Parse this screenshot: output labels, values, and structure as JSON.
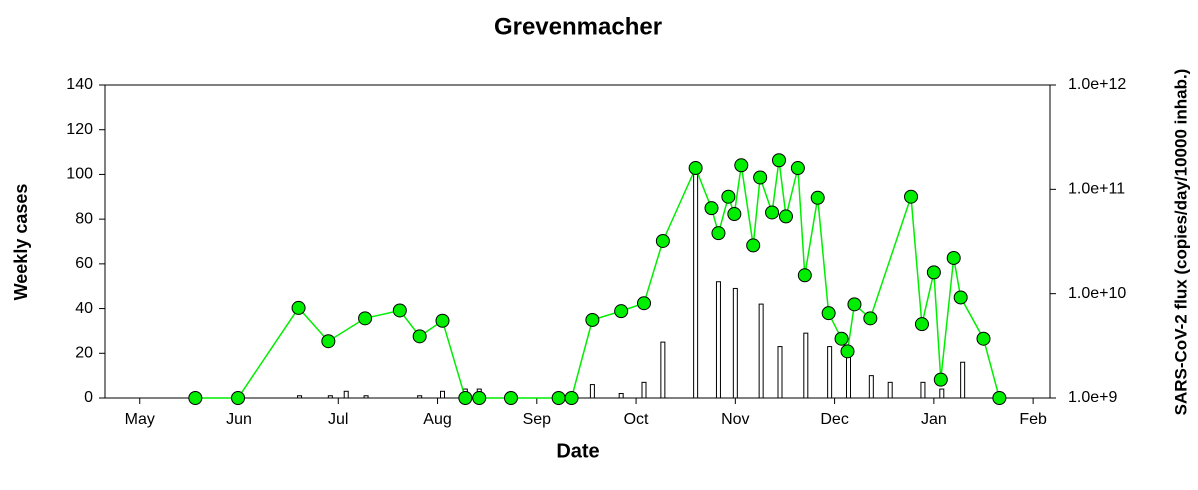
{
  "chart_data": {
    "type": "bar",
    "title": "Grevenmacher",
    "x_label": "Date",
    "y_label": "Weekly cases",
    "y2_label": "SARS-CoV-2 flux (copies/day/10000 inhab.)",
    "xlim": [
      -0.35,
      9.17
    ],
    "xticks": [
      {
        "value": 0,
        "label": "May"
      },
      {
        "value": 1,
        "label": "Jun"
      },
      {
        "value": 2,
        "label": "Jul"
      },
      {
        "value": 3,
        "label": "Aug"
      },
      {
        "value": 4,
        "label": "Sep"
      },
      {
        "value": 5,
        "label": "Oct"
      },
      {
        "value": 6,
        "label": "Nov"
      },
      {
        "value": 7,
        "label": "Dec"
      },
      {
        "value": 8,
        "label": "Jan"
      },
      {
        "value": 9,
        "label": "Feb"
      }
    ],
    "ylim": [
      0,
      140
    ],
    "yticks": [
      0,
      20,
      40,
      60,
      80,
      100,
      120,
      140
    ],
    "y2lim": [
      1000000000,
      1000000000000
    ],
    "y2scale": "log",
    "y2ticks": [
      {
        "value": 1000000000,
        "label": "1.0e+9"
      },
      {
        "value": 10000000000,
        "label": "1.0e+10"
      },
      {
        "value": 100000000000,
        "label": "1.0e+11"
      },
      {
        "value": 1000000000000,
        "label": "1.0e+12"
      }
    ],
    "series": [
      {
        "type": "bar",
        "color": "#ffffff",
        "x": [
          1.61,
          1.92,
          2.08,
          2.28,
          2.82,
          3.05,
          3.28,
          3.42,
          4.56,
          4.85,
          5.08,
          5.27,
          5.6,
          5.83,
          6.0,
          6.26,
          6.45,
          6.71,
          6.95,
          7.14,
          7.37,
          7.56,
          7.89,
          8.08,
          8.29
        ],
        "values": [
          1,
          1,
          3,
          1,
          1,
          3,
          4,
          4,
          6,
          2,
          7,
          25,
          104,
          52,
          49,
          42,
          23,
          29,
          23,
          20,
          10,
          7,
          7,
          4,
          16
        ]
      },
      {
        "type": "line",
        "axis": "y2",
        "color": "#00ee00",
        "x": [
          0.56,
          0.99,
          1.6,
          1.9,
          2.27,
          2.62,
          2.82,
          3.05,
          3.28,
          3.42,
          3.74,
          4.22,
          4.35,
          4.56,
          4.85,
          5.08,
          5.27,
          5.6,
          5.76,
          5.83,
          5.93,
          5.99,
          6.06,
          6.18,
          6.25,
          6.37,
          6.44,
          6.51,
          6.63,
          6.7,
          6.83,
          6.94,
          7.07,
          7.13,
          7.2,
          7.36,
          7.77,
          7.88,
          8.0,
          8.07,
          8.2,
          8.27,
          8.5,
          8.66
        ],
        "values": [
          1000000000,
          1000000000,
          7300000000,
          3500000000,
          5800000000,
          6900000000,
          3900000000,
          5500000000,
          1000000000,
          1000000000,
          1000000000,
          1000000000,
          1000000000,
          5600000000,
          6800000000,
          8100000000,
          32000000000,
          160000000000,
          66000000000,
          38000000000,
          85000000000,
          58000000000,
          170000000000,
          29000000000,
          130000000000,
          60000000000,
          190000000000,
          55000000000,
          160000000000,
          15000000000,
          83000000000,
          6500000000,
          3700000000,
          2800000000,
          7900000000,
          5800000000,
          85000000000,
          5100000000,
          16000000000,
          1500000000,
          22000000000,
          9200000000,
          3700000000,
          1000000000
        ]
      }
    ]
  }
}
